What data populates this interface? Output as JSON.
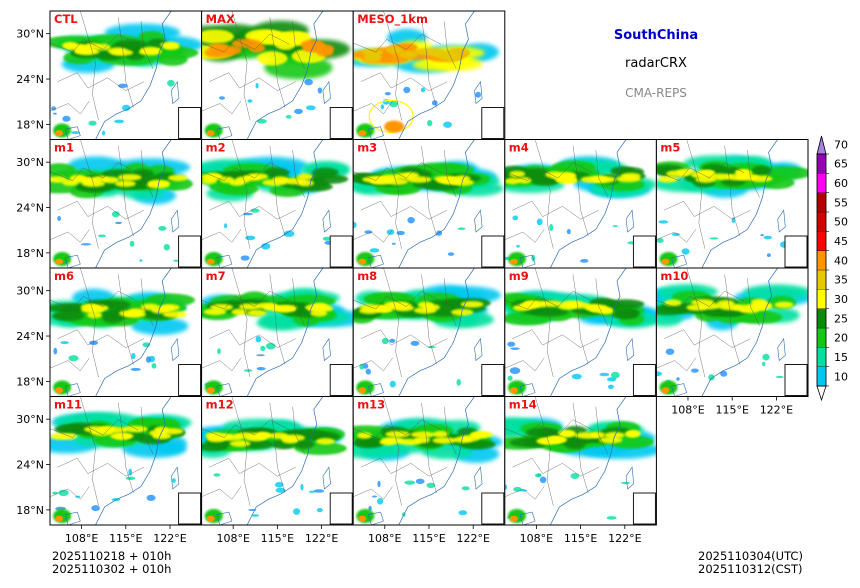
{
  "header": {
    "region": "SouthChina",
    "variable": "radarCRX",
    "model": "CMA-REPS",
    "region_color": "#0000cc",
    "model_color": "#888888"
  },
  "footer": {
    "init_utc": "2025110218  +  010h",
    "init_cst": "2025110302  +  010h",
    "valid_utc": "2025110304(UTC)",
    "valid_cst": "2025110312(CST)"
  },
  "chart_data": {
    "type": "heatmap",
    "title": "SouthChina radarCRX CMA-REPS",
    "panels": [
      "CTL",
      "MAX",
      "MESO_1km",
      "m1",
      "m2",
      "m3",
      "m4",
      "m5",
      "m6",
      "m7",
      "m8",
      "m9",
      "m10",
      "m11",
      "m12",
      "m13",
      "m14"
    ],
    "panel_label_color": "#ee1111",
    "x_ticks": [
      "108°E",
      "115°E",
      "122°E"
    ],
    "x_tick_values": [
      108,
      115,
      122
    ],
    "y_ticks": [
      "30°N",
      "24°N",
      "18°N"
    ],
    "y_tick_values": [
      30,
      24,
      18
    ],
    "xlim": [
      103,
      127
    ],
    "ylim": [
      16,
      33
    ],
    "colorbar": {
      "levels": [
        "10",
        "15",
        "20",
        "25",
        "30",
        "35",
        "40",
        "45",
        "50",
        "55",
        "60",
        "65",
        "70"
      ],
      "colors": [
        "#1e90ff",
        "#00c8f0",
        "#00e0a0",
        "#14c814",
        "#0a8c0a",
        "#ffff00",
        "#e6c800",
        "#ff9600",
        "#ff0000",
        "#d20000",
        "#b40000",
        "#ff00f0",
        "#9600b4",
        "#a880e0"
      ],
      "extend": "both"
    }
  }
}
